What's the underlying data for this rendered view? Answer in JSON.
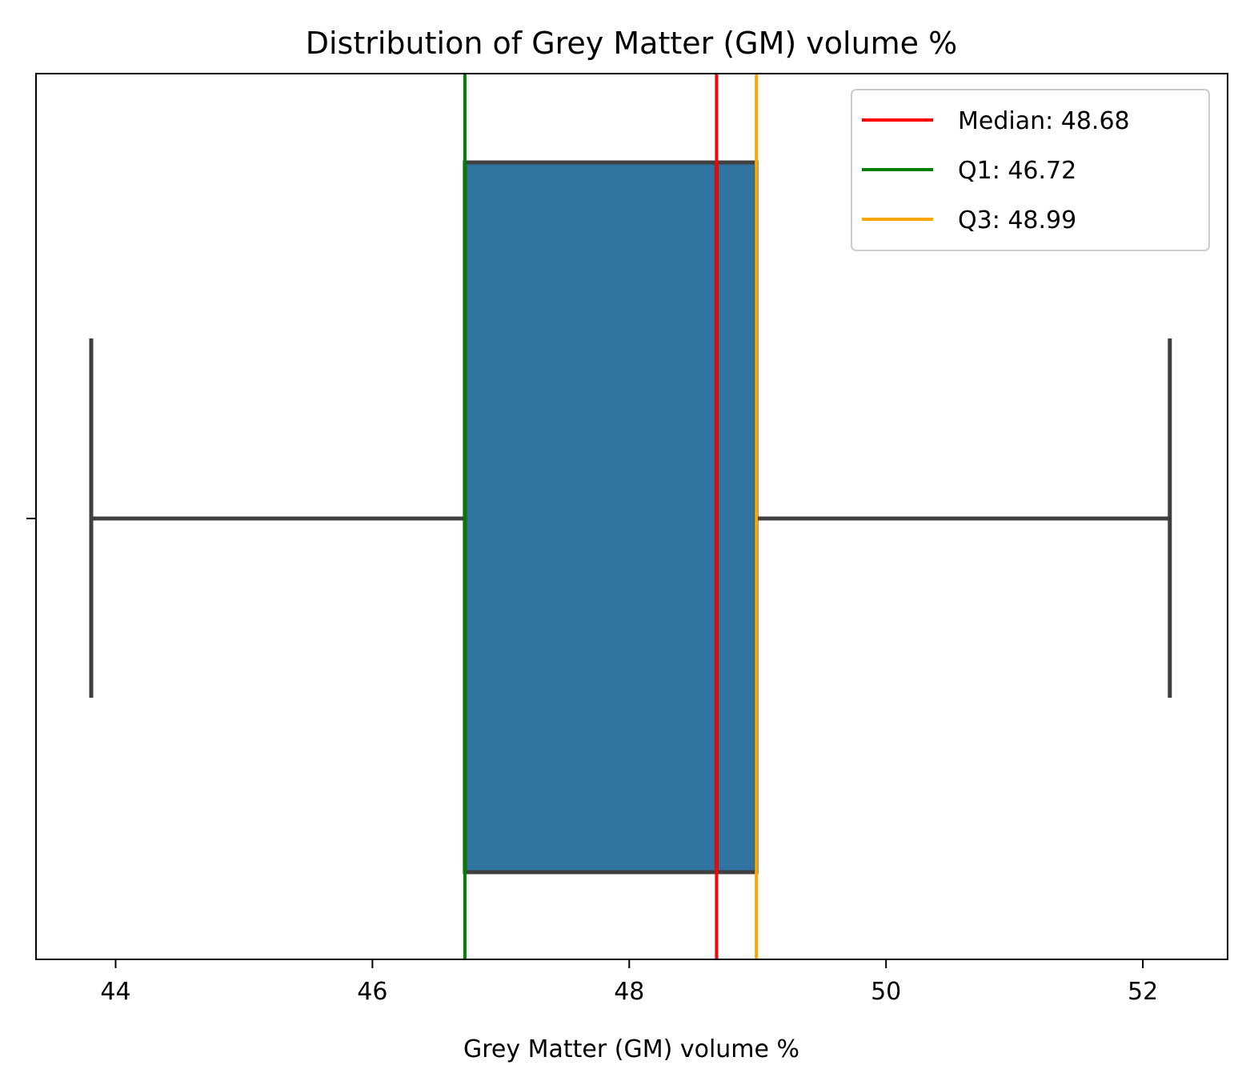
{
  "chart_data": {
    "type": "box",
    "title": "Distribution of Grey Matter (GM) volume %",
    "xlabel": "Grey Matter (GM) volume %",
    "ylabel": "",
    "xlim": [
      43.38,
      52.66
    ],
    "xticks": [
      44,
      46,
      48,
      50,
      52
    ],
    "grid": false,
    "legend_position": "top-right",
    "box": {
      "whisker_low": 43.81,
      "q1": 46.72,
      "median": 48.68,
      "q3": 48.99,
      "whisker_high": 52.21,
      "color": "#3274a1",
      "line_color": "#3f3f3f"
    },
    "reference_lines": [
      {
        "label": "Median: 48.68",
        "value": 48.68,
        "color": "#ff0000"
      },
      {
        "label": "Q1: 46.72",
        "value": 46.72,
        "color": "#008000"
      },
      {
        "label": "Q3: 48.99",
        "value": 48.99,
        "color": "#ffa500"
      }
    ]
  }
}
